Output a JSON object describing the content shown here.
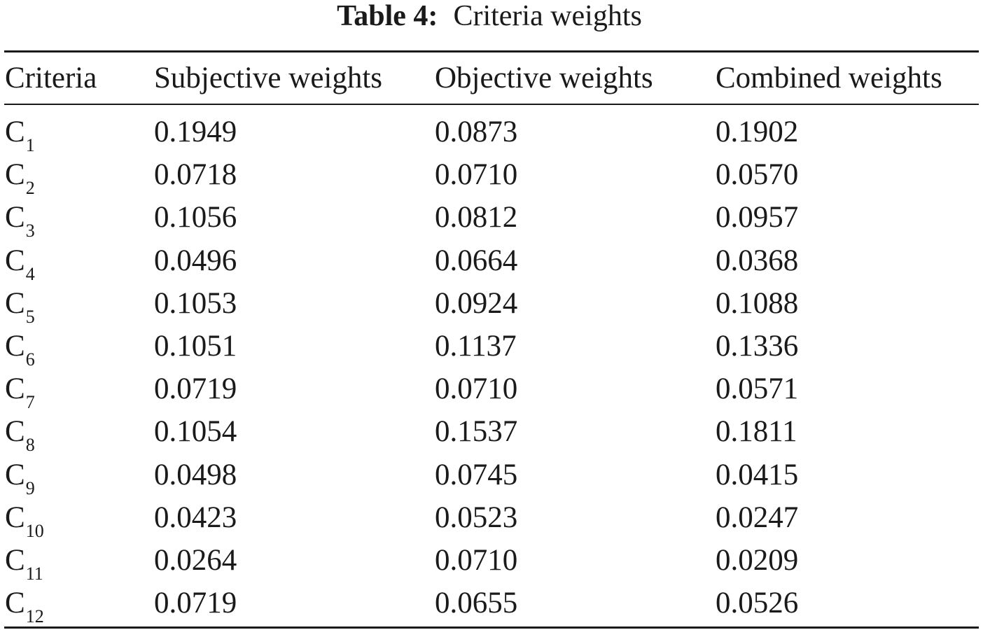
{
  "table": {
    "caption_label": "Table 4:",
    "caption_text": "Criteria weights",
    "columns": [
      "Criteria",
      "Subjective weights",
      "Objective weights",
      "Combined weights"
    ],
    "rows": [
      {
        "criterion": "C",
        "sub": "1",
        "subjective": "0.1949",
        "objective": "0.0873",
        "combined": "0.1902"
      },
      {
        "criterion": "C",
        "sub": "2",
        "subjective": "0.0718",
        "objective": "0.0710",
        "combined": "0.0570"
      },
      {
        "criterion": "C",
        "sub": "3",
        "subjective": "0.1056",
        "objective": "0.0812",
        "combined": "0.0957"
      },
      {
        "criterion": "C",
        "sub": "4",
        "subjective": "0.0496",
        "objective": "0.0664",
        "combined": "0.0368"
      },
      {
        "criterion": "C",
        "sub": "5",
        "subjective": "0.1053",
        "objective": "0.0924",
        "combined": "0.1088"
      },
      {
        "criterion": "C",
        "sub": "6",
        "subjective": "0.1051",
        "objective": "0.1137",
        "combined": "0.1336"
      },
      {
        "criterion": "C",
        "sub": "7",
        "subjective": "0.0719",
        "objective": "0.0710",
        "combined": "0.0571"
      },
      {
        "criterion": "C",
        "sub": "8",
        "subjective": "0.1054",
        "objective": "0.1537",
        "combined": "0.1811"
      },
      {
        "criterion": "C",
        "sub": "9",
        "subjective": "0.0498",
        "objective": "0.0745",
        "combined": "0.0415"
      },
      {
        "criterion": "C",
        "sub": "10",
        "subjective": "0.0423",
        "objective": "0.0523",
        "combined": "0.0247"
      },
      {
        "criterion": "C",
        "sub": "11",
        "subjective": "0.0264",
        "objective": "0.0710",
        "combined": "0.0209"
      },
      {
        "criterion": "C",
        "sub": "12",
        "subjective": "0.0719",
        "objective": "0.0655",
        "combined": "0.0526"
      }
    ]
  }
}
